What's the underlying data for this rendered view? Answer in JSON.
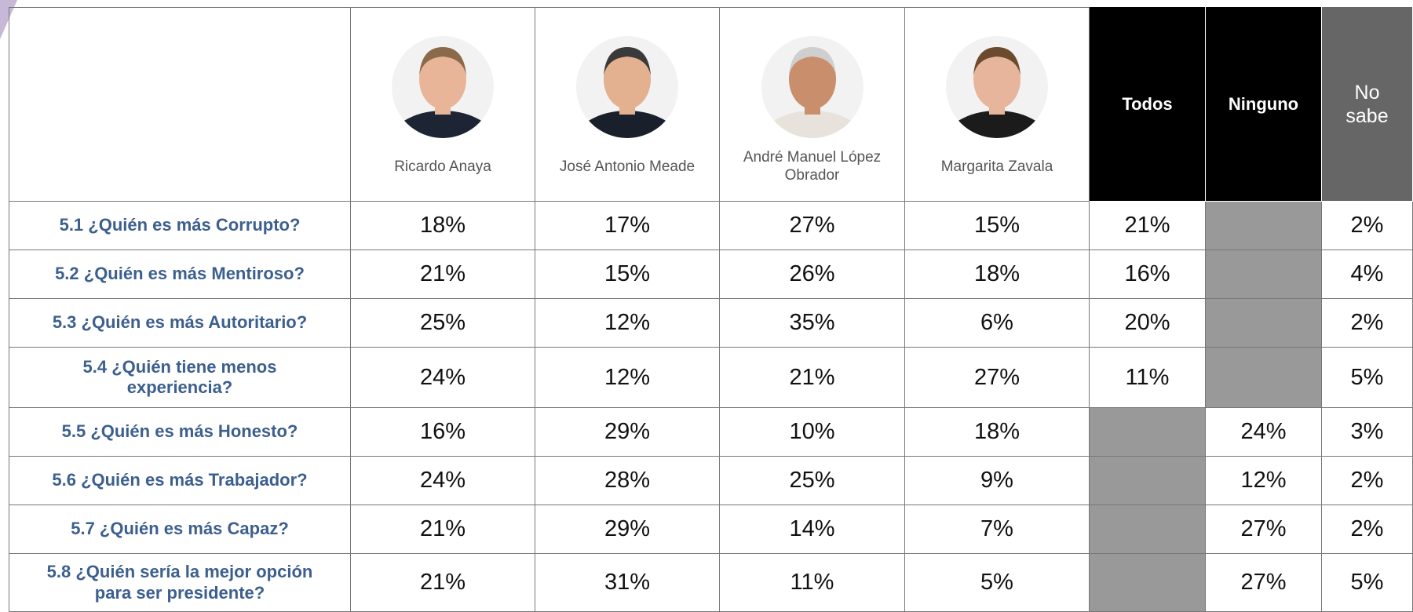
{
  "table": {
    "candidates": [
      "Ricardo Anaya",
      "José Antonio Meade",
      "André Manuel López Obrador",
      "Margarita Zavala"
    ],
    "options": [
      "Todos",
      "Ninguno",
      "No sabe"
    ],
    "rows": [
      {
        "question": "5.1 ¿Quién es más Corrupto?",
        "values": [
          "18%",
          "17%",
          "27%",
          "15%",
          "21%",
          null,
          "2%"
        ]
      },
      {
        "question": "5.2 ¿Quién es más Mentiroso?",
        "values": [
          "21%",
          "15%",
          "26%",
          "18%",
          "16%",
          null,
          "4%"
        ]
      },
      {
        "question": "5.3 ¿Quién es más Autoritario?",
        "values": [
          "25%",
          "12%",
          "35%",
          "6%",
          "20%",
          null,
          "2%"
        ]
      },
      {
        "question": "5.4 ¿Quién tiene menos experiencia?",
        "values": [
          "24%",
          "12%",
          "21%",
          "27%",
          "11%",
          null,
          "5%"
        ]
      },
      {
        "question": "5.5 ¿Quién es más Honesto?",
        "values": [
          "16%",
          "29%",
          "10%",
          "18%",
          null,
          "24%",
          "3%"
        ]
      },
      {
        "question": "5.6 ¿Quién es más Trabajador?",
        "values": [
          "24%",
          "28%",
          "25%",
          "9%",
          null,
          "12%",
          "2%"
        ]
      },
      {
        "question": "5.7 ¿Quién es más Capaz?",
        "values": [
          "21%",
          "29%",
          "14%",
          "7%",
          null,
          "27%",
          "2%"
        ]
      },
      {
        "question": "5.8 ¿Quién sería la mejor opción para ser presidente?",
        "values": [
          "21%",
          "31%",
          "11%",
          "5%",
          null,
          "27%",
          "5%"
        ]
      }
    ]
  }
}
